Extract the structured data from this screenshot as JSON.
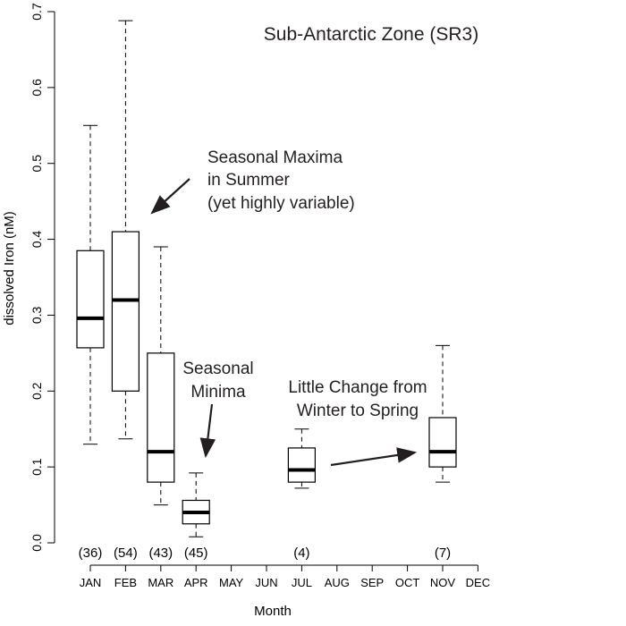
{
  "chart_data": {
    "type": "boxplot",
    "title": "Sub-Antarctic Zone (SR3)",
    "xlabel": "Month",
    "ylabel": "dissolved Iron (nM)",
    "ylim": [
      0,
      0.7
    ],
    "yticks": [
      "0.0",
      "0.1",
      "0.2",
      "0.3",
      "0.4",
      "0.5",
      "0.6",
      "0.7"
    ],
    "categories": [
      "JAN",
      "FEB",
      "MAR",
      "APR",
      "MAY",
      "JUN",
      "JUL",
      "AUG",
      "SEP",
      "OCT",
      "NOV",
      "DEC"
    ],
    "boxes": [
      {
        "month": "JAN",
        "n": "(36)",
        "lower_whisker": 0.13,
        "q1": 0.257,
        "median": 0.296,
        "q3": 0.385,
        "upper_whisker": 0.55
      },
      {
        "month": "FEB",
        "n": "(54)",
        "lower_whisker": 0.137,
        "q1": 0.2,
        "median": 0.32,
        "q3": 0.41,
        "upper_whisker": 0.688
      },
      {
        "month": "MAR",
        "n": "(43)",
        "lower_whisker": 0.05,
        "q1": 0.08,
        "median": 0.12,
        "q3": 0.25,
        "upper_whisker": 0.39
      },
      {
        "month": "APR",
        "n": "(45)",
        "lower_whisker": 0.008,
        "q1": 0.025,
        "median": 0.04,
        "q3": 0.056,
        "upper_whisker": 0.092
      },
      {
        "month": "JUL",
        "n": "(4)",
        "lower_whisker": 0.072,
        "q1": 0.08,
        "median": 0.096,
        "q3": 0.125,
        "upper_whisker": 0.15
      },
      {
        "month": "NOV",
        "n": "(7)",
        "lower_whisker": 0.08,
        "q1": 0.1,
        "median": 0.12,
        "q3": 0.165,
        "upper_whisker": 0.26
      }
    ],
    "annotations": [
      {
        "lines": [
          "Seasonal Maxima",
          "in Summer",
          "(yet highly variable)"
        ]
      },
      {
        "lines": [
          "Seasonal",
          "Minima"
        ]
      },
      {
        "lines": [
          "Little Change from",
          "Winter to Spring"
        ]
      }
    ],
    "grid": false,
    "legend": "none"
  }
}
